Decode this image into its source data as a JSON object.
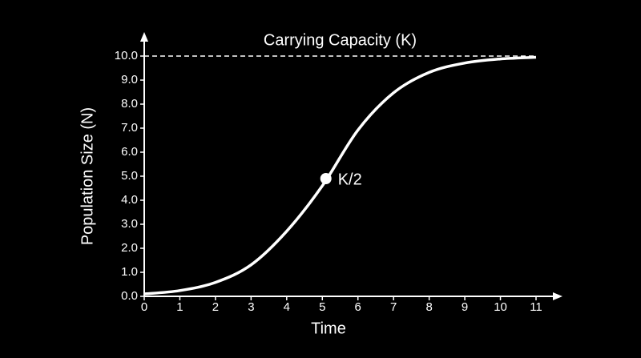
{
  "chart_data": {
    "type": "line",
    "x_label": "Time",
    "y_label": "Population Size (N)",
    "x": [
      0,
      1,
      2,
      3,
      4,
      5,
      6,
      7,
      8,
      9,
      10,
      11
    ],
    "series": [
      {
        "color": "#ffffff",
        "values": [
          0.1,
          0.24,
          0.58,
          1.31,
          2.71,
          4.6,
          6.92,
          8.47,
          9.32,
          9.71,
          9.88,
          9.95
        ]
      }
    ],
    "xlim": [
      0,
      11
    ],
    "ylim": [
      0,
      10
    ],
    "xticks": [
      0,
      1,
      2,
      3,
      4,
      5,
      6,
      7,
      8,
      9,
      10,
      11
    ],
    "yticks": [
      {
        "value": 0,
        "label": "0.0"
      },
      {
        "value": 1,
        "label": "1.0"
      },
      {
        "value": 2,
        "label": "2.0"
      },
      {
        "value": 3,
        "label": "3.0"
      },
      {
        "value": 4,
        "label": "4.0"
      },
      {
        "value": 5,
        "label": "5.0"
      },
      {
        "value": 6,
        "label": "6.0"
      },
      {
        "value": 7,
        "label": "7.0"
      },
      {
        "value": 8,
        "label": "8.0"
      },
      {
        "value": 9,
        "label": "9.0"
      },
      {
        "value": 10,
        "label": "10.0"
      }
    ],
    "annotations": [
      {
        "label": "Carrying Capacity (K)",
        "y": 10
      },
      {
        "label": "K/2",
        "x": 5.1,
        "y": 4.9
      }
    ]
  }
}
